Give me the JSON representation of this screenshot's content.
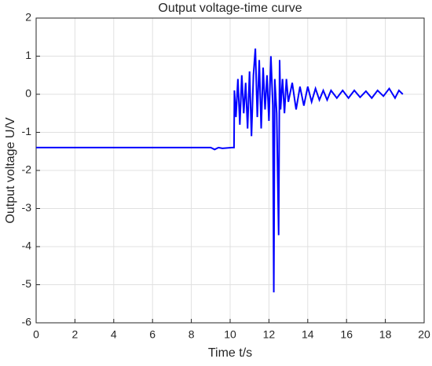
{
  "chart_data": {
    "type": "line",
    "title": "Output voltage-time curve",
    "xlabel": "Time t/s",
    "ylabel": "Output voltage U/V",
    "x": [
      0,
      9,
      9.2,
      9.4,
      9.6,
      10.1,
      10.2,
      10.22,
      10.3,
      10.4,
      10.5,
      10.6,
      10.7,
      10.8,
      10.9,
      11.0,
      11.1,
      11.2,
      11.3,
      11.4,
      11.5,
      11.6,
      11.7,
      11.8,
      11.9,
      12.0,
      12.1,
      12.2,
      12.25,
      12.3,
      12.4,
      12.5,
      12.55,
      12.6,
      12.7,
      12.8,
      12.9,
      13.0,
      13.2,
      13.4,
      13.6,
      13.8,
      14.0,
      14.2,
      14.4,
      14.6,
      14.8,
      15.0,
      15.2,
      15.5,
      15.8,
      16.1,
      16.4,
      16.7,
      17.0,
      17.3,
      17.6,
      17.9,
      18.2,
      18.5,
      18.7,
      18.9
    ],
    "series": [
      {
        "name": "Output voltage",
        "color": "#0000ff",
        "values": [
          -1.4,
          -1.4,
          -1.45,
          -1.4,
          -1.42,
          -1.4,
          -1.4,
          0.1,
          -0.6,
          0.4,
          -0.8,
          0.5,
          -0.5,
          0.3,
          -0.9,
          0.6,
          -1.1,
          0.5,
          1.2,
          -0.6,
          0.9,
          -0.9,
          0.7,
          -0.4,
          0.5,
          -0.7,
          1.0,
          -0.3,
          -5.2,
          0.4,
          -0.5,
          -3.7,
          0.9,
          -0.4,
          0.4,
          -0.5,
          0.4,
          -0.2,
          0.3,
          -0.4,
          0.2,
          -0.3,
          0.2,
          -0.2,
          0.15,
          -0.15,
          0.1,
          -0.15,
          0.1,
          -0.1,
          0.1,
          -0.1,
          0.1,
          -0.08,
          0.08,
          -0.1,
          0.1,
          -0.05,
          0.15,
          -0.1,
          0.1,
          0.0
        ]
      }
    ],
    "xlim": [
      0,
      20
    ],
    "xticks": [
      0,
      2,
      4,
      6,
      8,
      10,
      12,
      14,
      16,
      18,
      20
    ],
    "ylim": [
      -6,
      2
    ],
    "yticks": [
      -6,
      -5,
      -4,
      -3,
      -2,
      -1,
      0,
      1,
      2
    ],
    "grid": true
  }
}
